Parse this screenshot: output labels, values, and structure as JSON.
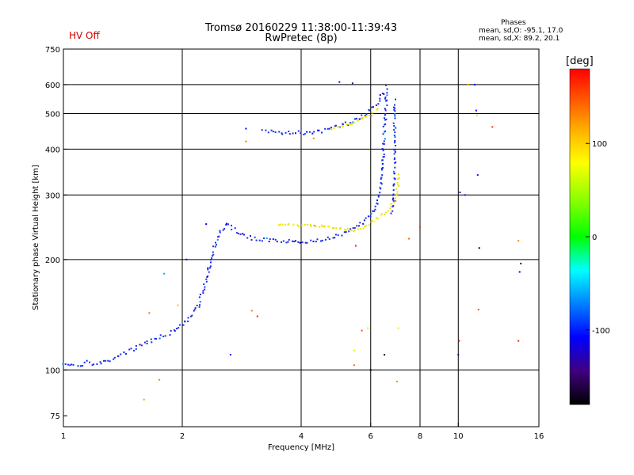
{
  "header": {
    "title_line1": "Tromsø 20160229 11:38:00-11:39:43",
    "title_line2": "RwPretec (8p)",
    "status": "HV Off",
    "stats_heading": "Phases",
    "stats_o": "mean, sd,O: -95.1, 17.0",
    "stats_x": "mean, sd,X:  89.2, 20.1"
  },
  "colorbar": {
    "unit": "[deg]",
    "ticks": [
      "100",
      "0",
      "-100"
    ],
    "tick_values": [
      100,
      0,
      -100
    ],
    "range": [
      -180,
      180
    ]
  },
  "chart_data": {
    "type": "scatter",
    "xlabel": "Frequency [MHz]",
    "ylabel": "Stationary phase Virtual Height [km]",
    "xscale": "log",
    "yscale": "log",
    "xlim": [
      1,
      16
    ],
    "ylim": [
      70,
      750
    ],
    "xticks": [
      1,
      2,
      4,
      6,
      8,
      10,
      16
    ],
    "xtick_labels": [
      "1",
      "2",
      "4",
      "6",
      "8",
      "10",
      "16"
    ],
    "yticks": [
      75,
      100,
      200,
      300,
      400,
      500,
      600,
      750
    ],
    "ytick_labels": [
      "75",
      "100",
      "200",
      "300",
      "400",
      "500",
      "600",
      "750"
    ],
    "x_gridlines": [
      2,
      4,
      6,
      8,
      10
    ],
    "y_gridlines": [
      100,
      200,
      300,
      400,
      500,
      600
    ],
    "colors": {
      "o_mode": "#1a2ee8",
      "x_mode": "#e6e600"
    },
    "traces": [
      {
        "mode": "O",
        "phase": -100,
        "points": [
          [
            1.0,
            103
          ],
          [
            1.05,
            104
          ],
          [
            1.1,
            103
          ],
          [
            1.15,
            105
          ],
          [
            1.2,
            103
          ],
          [
            1.3,
            106
          ],
          [
            1.4,
            110
          ],
          [
            1.5,
            114
          ],
          [
            1.6,
            118
          ],
          [
            1.7,
            121
          ],
          [
            1.8,
            124
          ],
          [
            1.9,
            128
          ],
          [
            2.0,
            133
          ],
          [
            2.1,
            140
          ],
          [
            2.2,
            150
          ],
          [
            2.3,
            175
          ],
          [
            2.4,
            215
          ],
          [
            2.5,
            240
          ],
          [
            2.6,
            250
          ],
          [
            2.8,
            235
          ],
          [
            3.0,
            228
          ],
          [
            3.3,
            226
          ],
          [
            3.6,
            224
          ],
          [
            4.0,
            224
          ],
          [
            4.4,
            226
          ],
          [
            4.8,
            230
          ],
          [
            5.2,
            237
          ],
          [
            5.6,
            248
          ],
          [
            6.0,
            262
          ],
          [
            6.2,
            280
          ],
          [
            6.35,
            320
          ],
          [
            6.45,
            380
          ],
          [
            6.5,
            450
          ],
          [
            6.55,
            520
          ],
          [
            6.6,
            600
          ]
        ]
      },
      {
        "mode": "O",
        "phase": -100,
        "points": [
          [
            3.2,
            448
          ],
          [
            3.5,
            445
          ],
          [
            3.8,
            443
          ],
          [
            4.1,
            443
          ],
          [
            4.4,
            446
          ],
          [
            4.8,
            455
          ],
          [
            5.2,
            468
          ],
          [
            5.6,
            485
          ],
          [
            6.0,
            510
          ],
          [
            6.3,
            540
          ],
          [
            6.5,
            580
          ]
        ]
      },
      {
        "mode": "X",
        "phase": 100,
        "points": [
          [
            3.5,
            250
          ],
          [
            3.8,
            248
          ],
          [
            4.2,
            247
          ],
          [
            4.6,
            246
          ],
          [
            5.0,
            243
          ],
          [
            5.4,
            240
          ],
          [
            5.8,
            245
          ],
          [
            6.2,
            258
          ],
          [
            6.6,
            270
          ],
          [
            6.9,
            290
          ],
          [
            7.05,
            320
          ],
          [
            7.1,
            345
          ]
        ]
      },
      {
        "mode": "O",
        "phase": -100,
        "points": [
          [
            6.8,
            270
          ],
          [
            6.85,
            300
          ],
          [
            6.9,
            340
          ],
          [
            6.9,
            380
          ],
          [
            6.9,
            420
          ],
          [
            6.9,
            480
          ],
          [
            6.9,
            550
          ]
        ]
      },
      {
        "mode": "X",
        "phase": 100,
        "points": [
          [
            4.8,
            455
          ],
          [
            5.2,
            465
          ],
          [
            5.6,
            478
          ],
          [
            6.0,
            495
          ],
          [
            6.3,
            520
          ]
        ]
      }
    ],
    "scattered_points": [
      [
        1.6,
        83,
        120
      ],
      [
        1.75,
        94,
        130
      ],
      [
        1.65,
        143,
        140
      ],
      [
        1.95,
        150,
        110
      ],
      [
        1.8,
        183,
        -60
      ],
      [
        2.05,
        200,
        -110
      ],
      [
        2.3,
        250,
        -110
      ],
      [
        2.65,
        110,
        -100
      ],
      [
        2.9,
        420,
        140
      ],
      [
        2.9,
        455,
        -110
      ],
      [
        3.0,
        145,
        130
      ],
      [
        3.1,
        140,
        170
      ],
      [
        4.3,
        428,
        130
      ],
      [
        5.0,
        610,
        -110
      ],
      [
        5.4,
        605,
        -130
      ],
      [
        5.45,
        103,
        140
      ],
      [
        5.45,
        113,
        60
      ],
      [
        5.5,
        218,
        170
      ],
      [
        5.7,
        128,
        150
      ],
      [
        5.9,
        130,
        90
      ],
      [
        6.0,
        100,
        -180
      ],
      [
        6.5,
        110,
        -170
      ],
      [
        7.0,
        93,
        130
      ],
      [
        7.05,
        130,
        90
      ],
      [
        7.5,
        228,
        140
      ],
      [
        8.0,
        245,
        160
      ],
      [
        10.0,
        110,
        -150
      ],
      [
        10.05,
        120,
        170
      ],
      [
        10.1,
        305,
        -120
      ],
      [
        10.4,
        300,
        -100
      ],
      [
        10.6,
        600,
        120
      ],
      [
        11.0,
        600,
        -110
      ],
      [
        11.1,
        510,
        -110
      ],
      [
        11.15,
        495,
        100
      ],
      [
        11.2,
        340,
        -100
      ],
      [
        11.3,
        215,
        -180
      ],
      [
        11.25,
        146,
        150
      ],
      [
        12.2,
        460,
        160
      ],
      [
        14.2,
        120,
        170
      ],
      [
        14.3,
        185,
        -110
      ],
      [
        14.4,
        195,
        -150
      ],
      [
        14.2,
        225,
        130
      ]
    ]
  }
}
